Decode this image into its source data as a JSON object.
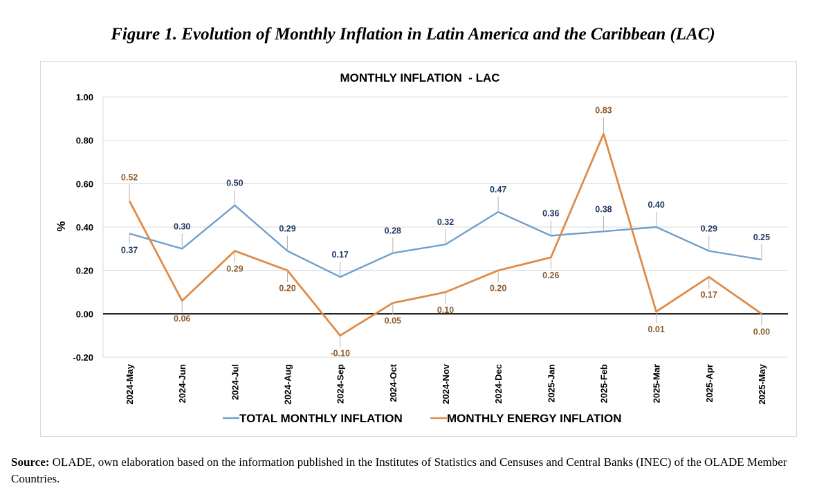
{
  "figure_title": "Figure 1. Evolution of Monthly Inflation in Latin America and the Caribbean (LAC)",
  "source": {
    "label": "Source:",
    "text": " OLADE, own elaboration based on the information published in the Institutes of Statistics and Censuses and Central Banks (INEC) of the OLADE Member Countries."
  },
  "chart_data": {
    "type": "line",
    "title": "MONTHLY INFLATION  - LAC",
    "xlabel": "",
    "ylabel": "%",
    "ylim": [
      -0.2,
      1.0
    ],
    "yticks": [
      -0.2,
      0.0,
      0.2,
      0.4,
      0.6,
      0.8,
      1.0
    ],
    "ytick_labels": [
      "-0.20",
      "0.00",
      "0.20",
      "0.40",
      "0.60",
      "0.80",
      "1.00"
    ],
    "grid": true,
    "legend": "bottom",
    "categories": [
      "2024-May",
      "2024-Jun",
      "2024-Jul",
      "2024-Aug",
      "2024-Sep",
      "2024-Oct",
      "2024-Nov",
      "2024-Dec",
      "2025-Jan",
      "2025-Feb",
      "2025-Mar",
      "2025-Apr",
      "2025-May"
    ],
    "series": [
      {
        "name": "TOTAL MONTHLY INFLATION",
        "color": "#6f9fcb",
        "label_color": "#1f3864",
        "values": [
          0.37,
          0.3,
          0.5,
          0.29,
          0.17,
          0.28,
          0.32,
          0.47,
          0.36,
          0.38,
          0.4,
          0.29,
          0.25
        ],
        "labels": [
          "0.37",
          "0.30",
          "0.50",
          "0.29",
          "0.17",
          "0.28",
          "0.32",
          "0.47",
          "0.36",
          "0.38",
          "0.40",
          "0.29",
          "0.25"
        ]
      },
      {
        "name": "MONTHLY ENERGY INFLATION",
        "color": "#e08a45",
        "label_color": "#8b5a2b",
        "values": [
          0.52,
          0.06,
          0.29,
          0.2,
          -0.1,
          0.05,
          0.1,
          0.2,
          0.26,
          0.83,
          0.01,
          0.17,
          0.0
        ],
        "labels": [
          "0.52",
          "0.06",
          "0.29",
          "0.20",
          "-0.10",
          "0.05",
          "0.10",
          "0.20",
          "0.26",
          "0.83",
          "0.01",
          "0.17",
          "0.00"
        ]
      }
    ]
  }
}
